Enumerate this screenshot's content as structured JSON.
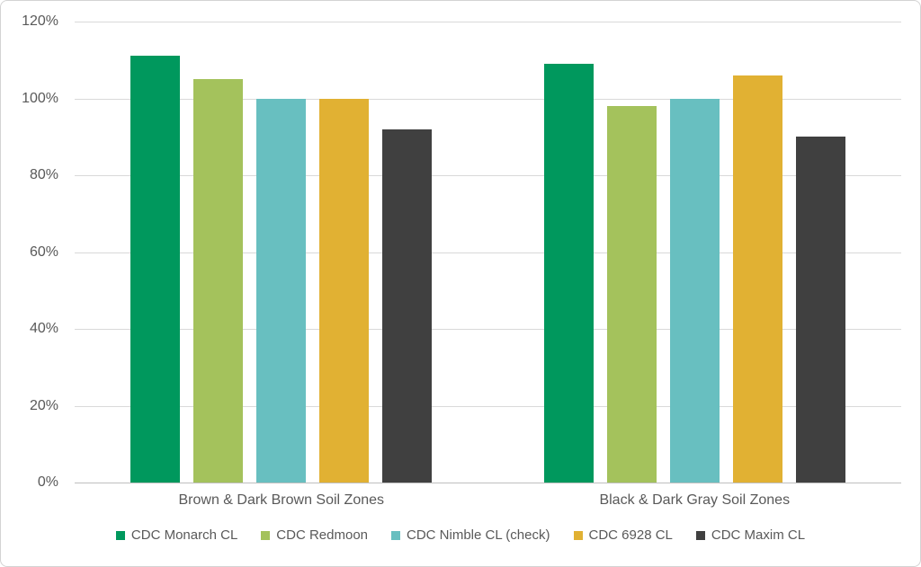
{
  "chart_data": {
    "type": "bar",
    "title": "",
    "unit": "%",
    "categories": [
      "Brown & Dark Brown Soil Zones",
      "Black & Dark Gray Soil Zones"
    ],
    "series": [
      {
        "name": "CDC Monarch CL",
        "color": "#00985D",
        "values": [
          111,
          109
        ]
      },
      {
        "name": "CDC Redmoon",
        "color": "#A4C25C",
        "values": [
          105,
          98
        ]
      },
      {
        "name": "CDC Nimble CL (check)",
        "color": "#68BFC0",
        "values": [
          100,
          100
        ]
      },
      {
        "name": "CDC 6928 CL",
        "color": "#E1B133",
        "values": [
          100,
          106
        ]
      },
      {
        "name": "CDC Maxim CL",
        "color": "#404040",
        "values": [
          92,
          90
        ]
      }
    ],
    "xlabel": "",
    "ylabel": "",
    "ylim": [
      0,
      120
    ],
    "y_ticks": [
      {
        "value": 0,
        "label": "0%"
      },
      {
        "value": 20,
        "label": "20%"
      },
      {
        "value": 40,
        "label": "40%"
      },
      {
        "value": 60,
        "label": "60%"
      },
      {
        "value": 80,
        "label": "80%"
      },
      {
        "value": 100,
        "label": "100%"
      },
      {
        "value": 120,
        "label": "120%"
      }
    ],
    "grid": true,
    "legend_position": "bottom"
  },
  "style_colors": {
    "gridline": "#d9d9d9",
    "axis_line": "#bfbfbf",
    "text": "#595959",
    "card_border": "#d3d3d3",
    "background": "#ffffff"
  }
}
